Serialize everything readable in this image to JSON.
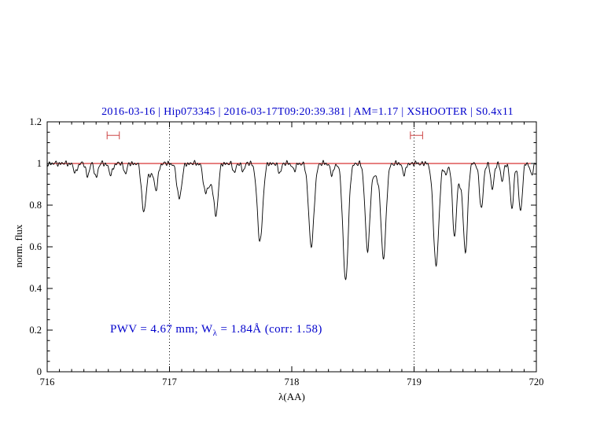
{
  "title": "2016-03-16 | Hip073345 | 2016-03-17T09:20:39.381 | AM=1.17 | XSHOOTER | S0.4x11",
  "annotation": {
    "prefix": "PWV = 4.67 mm; W",
    "sub": "λ",
    "suffix": " = 1.84Å (corr: 1.58)",
    "pwv_mm": 4.67,
    "equivalent_width_A": 1.84,
    "correction_factor": 1.58
  },
  "colors": {
    "title_blue": "#0000cc",
    "annotation_blue": "#0000cc",
    "reference_red": "#cc0000",
    "marker_red": "#cc4444",
    "spectrum_black": "#000000",
    "axis_black": "#000000"
  },
  "chart_data": {
    "type": "line",
    "title": "2016-03-16 | Hip073345 | 2016-03-17T09:20:39.381 | AM=1.17 | XSHOOTER | S0.4x11",
    "xlabel": "λ(AA)",
    "ylabel": "norm. flux",
    "xlim": [
      716,
      720
    ],
    "ylim": [
      0,
      1.2
    ],
    "grid": false,
    "legend": false,
    "x_ticks": {
      "values": [
        716,
        717,
        718,
        719,
        720
      ],
      "labels": [
        "716",
        "717",
        "718",
        "719",
        "720"
      ],
      "minor_step": 0.1
    },
    "y_ticks": {
      "values": [
        0,
        0.2,
        0.4,
        0.6,
        0.8,
        1.0,
        1.2
      ],
      "labels": [
        "0",
        "0.2",
        "0.4",
        "0.6",
        "0.8",
        "1",
        "1.2"
      ],
      "minor_step": 0.05
    },
    "continuum_level": 1.0,
    "reference_line": {
      "y": 1.0
    },
    "vlines": {
      "x": [
        717,
        719
      ],
      "style": "dotted"
    },
    "range_markers": [
      {
        "x_min": 716.49,
        "x_max": 716.59,
        "y": 1.135
      },
      {
        "x_min": 718.97,
        "x_max": 719.07,
        "y": 1.135
      }
    ],
    "absorption_lines": [
      [
        716.23,
        0.045,
        0.014
      ],
      [
        716.33,
        0.06,
        0.013
      ],
      [
        716.4,
        0.065,
        0.014
      ],
      [
        716.52,
        0.055,
        0.015
      ],
      [
        716.64,
        0.045,
        0.013
      ],
      [
        716.79,
        0.23,
        0.018
      ],
      [
        716.84,
        0.05,
        0.02
      ],
      [
        716.89,
        0.125,
        0.016
      ],
      [
        717.08,
        0.165,
        0.02
      ],
      [
        717.29,
        0.125,
        0.016
      ],
      [
        717.33,
        0.1,
        0.02
      ],
      [
        717.38,
        0.245,
        0.018
      ],
      [
        717.53,
        0.04,
        0.013
      ],
      [
        717.6,
        0.035,
        0.012
      ],
      [
        717.74,
        0.375,
        0.022
      ],
      [
        717.9,
        0.045,
        0.013
      ],
      [
        718.02,
        0.035,
        0.013
      ],
      [
        718.16,
        0.395,
        0.022
      ],
      [
        718.33,
        0.055,
        0.014
      ],
      [
        718.44,
        0.56,
        0.022
      ],
      [
        718.62,
        0.415,
        0.02
      ],
      [
        718.69,
        0.06,
        0.022
      ],
      [
        718.75,
        0.45,
        0.021
      ],
      [
        718.92,
        0.05,
        0.014
      ],
      [
        719.18,
        0.49,
        0.022
      ],
      [
        719.26,
        0.05,
        0.015
      ],
      [
        719.33,
        0.35,
        0.016
      ],
      [
        719.375,
        0.08,
        0.018
      ],
      [
        719.42,
        0.42,
        0.018
      ],
      [
        719.55,
        0.215,
        0.016
      ],
      [
        719.64,
        0.12,
        0.014
      ],
      [
        719.72,
        0.08,
        0.013
      ],
      [
        719.8,
        0.21,
        0.015
      ],
      [
        719.87,
        0.23,
        0.015
      ],
      [
        719.96,
        0.05,
        0.013
      ]
    ],
    "noise_components": [
      [
        0.006,
        233,
        0.7
      ],
      [
        0.0045,
        149,
        2.1
      ],
      [
        0.003,
        317,
        4.0
      ],
      [
        0.0025,
        83,
        1.0
      ]
    ],
    "samples": 1400
  }
}
